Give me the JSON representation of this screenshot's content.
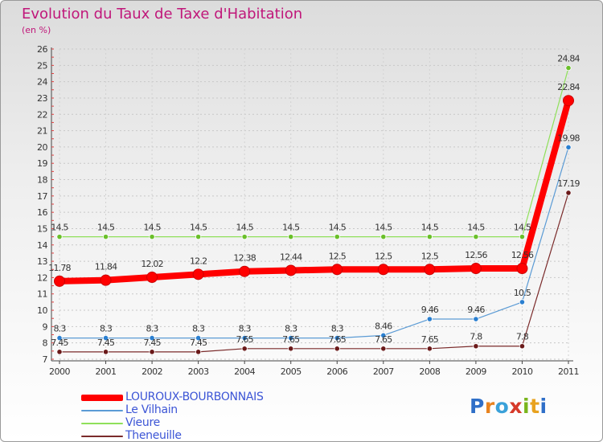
{
  "title": "Evolution du Taux de Taxe d'Habitation",
  "subtitle": "(en %)",
  "brand": {
    "name": "Proxiti",
    "letters": [
      "P",
      "r",
      "o",
      "x",
      "i",
      "t",
      "i"
    ],
    "letter_colors": [
      "#2f6fc8",
      "#e8831f",
      "#3aa1d9",
      "#d63a2a",
      "#7ab51d",
      "#e8a21f",
      "#2f6fc8"
    ]
  },
  "chart_data": {
    "type": "line",
    "title": "Evolution du Taux de Taxe d'Habitation",
    "ylabel": "(en %)",
    "xlabel": "",
    "x": [
      "2000",
      "2001",
      "2002",
      "2003",
      "2004",
      "2005",
      "2006",
      "2007",
      "2008",
      "2009",
      "2010",
      "2011"
    ],
    "ylim": [
      7,
      26
    ],
    "yticks": [
      7,
      8,
      9,
      10,
      11,
      12,
      13,
      14,
      15,
      16,
      17,
      18,
      19,
      20,
      21,
      22,
      23,
      24,
      25,
      26
    ],
    "grid": "horizontal dashed",
    "legend": "bottom-left",
    "series": [
      {
        "name": "LOUROUX-BOURBONNAIS",
        "color": "#ff0000",
        "emphasis": true,
        "values": [
          11.78,
          11.84,
          12.02,
          12.2,
          12.38,
          12.44,
          12.5,
          12.5,
          12.5,
          12.56,
          12.56,
          22.84
        ],
        "labels": [
          "11.78",
          "11.84",
          "12.02",
          "12.2",
          "12.38",
          "12.44",
          "12.5",
          "12.5",
          "12.5",
          "12.56",
          "12.56",
          "22.84"
        ]
      },
      {
        "name": "Le Vilhain",
        "color": "#5b9bd5",
        "point_color": "#2a7fd0",
        "values": [
          8.3,
          8.3,
          8.3,
          8.3,
          8.3,
          8.3,
          8.3,
          8.46,
          9.46,
          9.46,
          10.5,
          19.98
        ],
        "labels": [
          "8.3",
          "8.3",
          "8.3",
          "8.3",
          "8.3",
          "8.3",
          "8.3",
          "8.46",
          "9.46",
          "9.46",
          "10.5",
          "19.98"
        ]
      },
      {
        "name": "Vieure",
        "color": "#8fe05a",
        "point_color": "#6abf2a",
        "values": [
          14.5,
          14.5,
          14.5,
          14.5,
          14.5,
          14.5,
          14.5,
          14.5,
          14.5,
          14.5,
          14.5,
          24.84
        ],
        "labels": [
          "14.5",
          "14.5",
          "14.5",
          "14.5",
          "14.5",
          "14.5",
          "14.5",
          "14.5",
          "14.5",
          "14.5",
          "14.5",
          "24.84"
        ]
      },
      {
        "name": "Theneuille",
        "color": "#7a2a2a",
        "point_color": "#6b1a1a",
        "values": [
          7.45,
          7.45,
          7.45,
          7.45,
          7.65,
          7.65,
          7.65,
          7.65,
          7.65,
          7.8,
          7.8,
          17.19
        ],
        "labels": [
          "7.45",
          "7.45",
          "7.45",
          "7.45",
          "7.65",
          "7.65",
          "7.65",
          "7.65",
          "7.65",
          "7.8",
          "7.8",
          "17.19"
        ]
      }
    ]
  }
}
